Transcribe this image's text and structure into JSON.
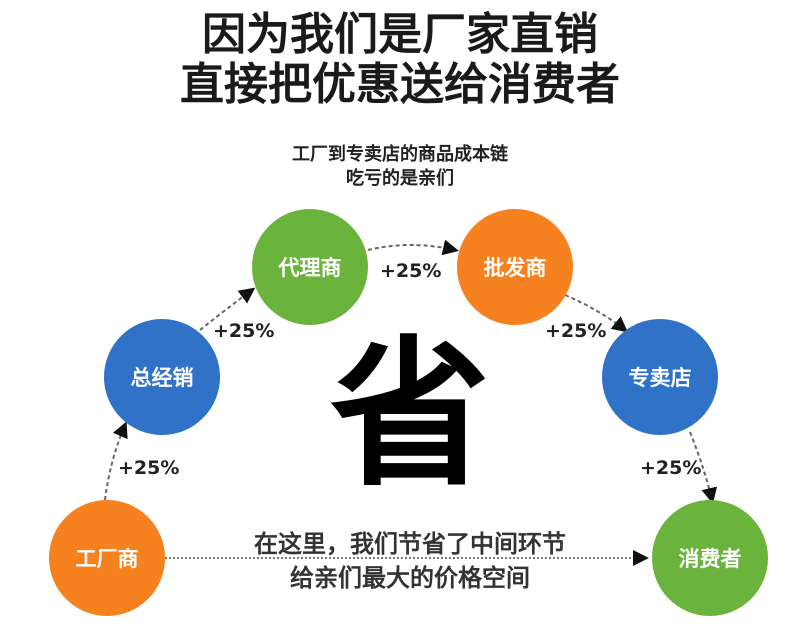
{
  "title": {
    "line1": "因为我们是厂家直销",
    "line2": "直接把优惠送给消费者"
  },
  "subtitle": {
    "line1": "工厂到专卖店的商品成本链",
    "line2": "吃亏的是亲们"
  },
  "nodes": [
    {
      "label": "工厂商",
      "color": "#f5821f"
    },
    {
      "label": "总经销",
      "color": "#2f72c8"
    },
    {
      "label": "代理商",
      "color": "#6ab43e"
    },
    {
      "label": "批发商",
      "color": "#f5821f"
    },
    {
      "label": "专卖店",
      "color": "#2f72c8"
    },
    {
      "label": "消费者",
      "color": "#6ab43e"
    }
  ],
  "markups": [
    "+25%",
    "+25%",
    "+25%",
    "+25%",
    "+25%"
  ],
  "center_char": "省",
  "bottom": {
    "line1": "在这里，我们节省了中间环节",
    "line2": "给亲们最大的价格空间"
  }
}
